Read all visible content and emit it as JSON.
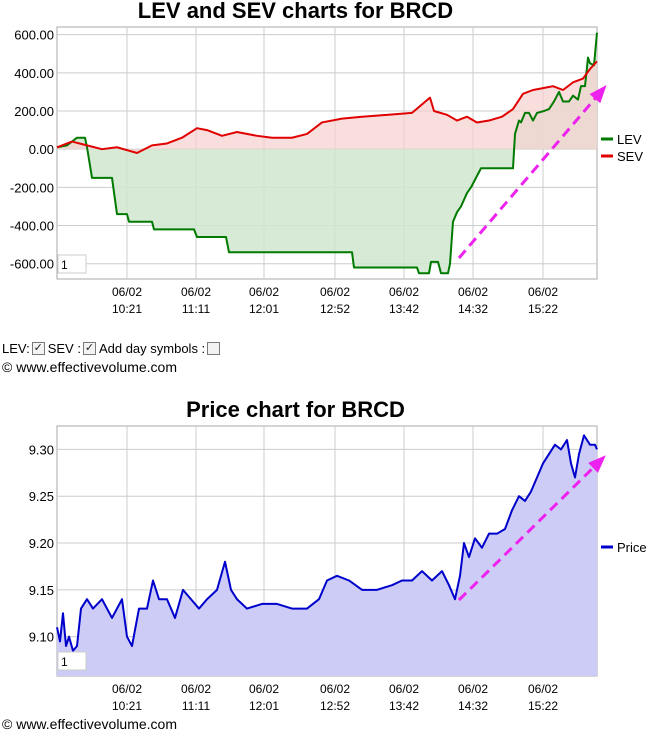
{
  "charts": {
    "lev_sev": {
      "title": "LEV and SEV charts for BRCD",
      "y_tick_labels": [
        "600.00",
        "400.00",
        "200.00",
        "0.00",
        "-200.00",
        "-400.00",
        "-600.00"
      ],
      "x_tick_labels": [
        {
          "date": "06/02",
          "time": "10:21"
        },
        {
          "date": "06/02",
          "time": "11:11"
        },
        {
          "date": "06/02",
          "time": "12:01"
        },
        {
          "date": "06/02",
          "time": "12:52"
        },
        {
          "date": "06/02",
          "time": "13:42"
        },
        {
          "date": "06/02",
          "time": "14:32"
        },
        {
          "date": "06/02",
          "time": "15:22"
        }
      ],
      "legend": [
        {
          "name": "LEV",
          "color": "#007a00"
        },
        {
          "name": "SEV",
          "color": "#e00000"
        }
      ],
      "page_box": "1"
    },
    "price": {
      "title": "Price chart for BRCD",
      "y_tick_labels": [
        "9.30",
        "9.25",
        "9.20",
        "9.15",
        "9.10"
      ],
      "x_tick_labels": [
        {
          "date": "06/02",
          "time": "10:21"
        },
        {
          "date": "06/02",
          "time": "11:11"
        },
        {
          "date": "06/02",
          "time": "12:01"
        },
        {
          "date": "06/02",
          "time": "12:52"
        },
        {
          "date": "06/02",
          "time": "13:42"
        },
        {
          "date": "06/02",
          "time": "14:32"
        },
        {
          "date": "06/02",
          "time": "15:22"
        }
      ],
      "legend": [
        {
          "name": "Price",
          "color": "#0000cc"
        }
      ],
      "page_box": "1"
    }
  },
  "controls": {
    "lev_label": "LEV:",
    "lev_checked": true,
    "sev_label": "SEV :",
    "sev_checked": true,
    "day_symbols_label": "Add day symbols :",
    "day_symbols_checked": false
  },
  "copyright": "© www.effectivevolume.com",
  "colors": {
    "lev": "#007a00",
    "lev_fill": "#cfe6cf",
    "sev": "#e00000",
    "sev_fill": "#f6d0d0",
    "price": "#0000cc",
    "price_fill": "#ccccf6",
    "trend_arrow": "#ee22ee",
    "grid": "#cccccc"
  },
  "chart_data": [
    {
      "type": "area",
      "title": "LEV and SEV charts for BRCD",
      "x_label_times": [
        "10:21",
        "11:11",
        "12:01",
        "12:52",
        "13:42",
        "14:32",
        "15:22"
      ],
      "ylim": [
        -680,
        640
      ],
      "grid": true,
      "legend_position": "right",
      "series": [
        {
          "name": "LEV",
          "values": [
            [
              0,
              10
            ],
            [
              10,
              20
            ],
            [
              20,
              60
            ],
            [
              28,
              60
            ],
            [
              30,
              10
            ],
            [
              35,
              -150
            ],
            [
              55,
              -150
            ],
            [
              60,
              -340
            ],
            [
              70,
              -340
            ],
            [
              72,
              -380
            ],
            [
              95,
              -380
            ],
            [
              97,
              -420
            ],
            [
              137,
              -420
            ],
            [
              140,
              -460
            ],
            [
              169,
              -460
            ],
            [
              172,
              -540
            ],
            [
              295,
              -540
            ],
            [
              297,
              -620
            ],
            [
              360,
              -620
            ],
            [
              362,
              -650
            ],
            [
              372,
              -650
            ],
            [
              374,
              -590
            ],
            [
              381,
              -590
            ],
            [
              384,
              -650
            ],
            [
              391,
              -650
            ],
            [
              393,
              -600
            ],
            [
              396,
              -380
            ],
            [
              400,
              -330
            ],
            [
              404,
              -300
            ],
            [
              410,
              -230
            ],
            [
              414,
              -200
            ],
            [
              418,
              -160
            ],
            [
              424,
              -100
            ],
            [
              456,
              -100
            ],
            [
              458,
              80
            ],
            [
              462,
              150
            ],
            [
              464,
              140
            ],
            [
              468,
              190
            ],
            [
              472,
              190
            ],
            [
              476,
              150
            ],
            [
              480,
              190
            ],
            [
              487,
              200
            ],
            [
              492,
              210
            ],
            [
              497,
              250
            ],
            [
              502,
              300
            ],
            [
              506,
              250
            ],
            [
              512,
              250
            ],
            [
              516,
              280
            ],
            [
              521,
              260
            ],
            [
              524,
              330
            ],
            [
              528,
              330
            ],
            [
              531,
              480
            ],
            [
              533,
              450
            ],
            [
              537,
              440
            ],
            [
              540,
              610
            ]
          ]
        },
        {
          "name": "SEV",
          "values": [
            [
              0,
              10
            ],
            [
              15,
              40
            ],
            [
              30,
              20
            ],
            [
              45,
              0
            ],
            [
              60,
              10
            ],
            [
              80,
              -20
            ],
            [
              95,
              20
            ],
            [
              110,
              30
            ],
            [
              125,
              60
            ],
            [
              140,
              110
            ],
            [
              150,
              100
            ],
            [
              165,
              70
            ],
            [
              180,
              90
            ],
            [
              200,
              70
            ],
            [
              215,
              60
            ],
            [
              235,
              60
            ],
            [
              250,
              80
            ],
            [
              265,
              140
            ],
            [
              285,
              160
            ],
            [
              305,
              170
            ],
            [
              330,
              180
            ],
            [
              355,
              190
            ],
            [
              373,
              270
            ],
            [
              377,
              200
            ],
            [
              390,
              180
            ],
            [
              400,
              150
            ],
            [
              410,
              170
            ],
            [
              420,
              140
            ],
            [
              432,
              150
            ],
            [
              445,
              170
            ],
            [
              456,
              210
            ],
            [
              466,
              290
            ],
            [
              476,
              310
            ],
            [
              486,
              320
            ],
            [
              496,
              330
            ],
            [
              506,
              310
            ],
            [
              516,
              350
            ],
            [
              526,
              370
            ],
            [
              533,
              420
            ],
            [
              540,
              460
            ]
          ]
        }
      ]
    },
    {
      "type": "area",
      "title": "Price chart for BRCD",
      "x_label_times": [
        "10:21",
        "11:11",
        "12:01",
        "12:52",
        "13:42",
        "14:32",
        "15:22"
      ],
      "ylim": [
        9.058,
        9.325
      ],
      "grid": true,
      "legend_position": "right",
      "series": [
        {
          "name": "Price",
          "values": [
            [
              0,
              9.11
            ],
            [
              3,
              9.095
            ],
            [
              6,
              9.125
            ],
            [
              9,
              9.09
            ],
            [
              12,
              9.1
            ],
            [
              16,
              9.085
            ],
            [
              20,
              9.09
            ],
            [
              24,
              9.13
            ],
            [
              30,
              9.14
            ],
            [
              36,
              9.13
            ],
            [
              45,
              9.14
            ],
            [
              55,
              9.12
            ],
            [
              65,
              9.14
            ],
            [
              70,
              9.1
            ],
            [
              75,
              9.09
            ],
            [
              82,
              9.13
            ],
            [
              90,
              9.13
            ],
            [
              96,
              9.16
            ],
            [
              102,
              9.14
            ],
            [
              110,
              9.14
            ],
            [
              118,
              9.12
            ],
            [
              126,
              9.15
            ],
            [
              134,
              9.14
            ],
            [
              142,
              9.13
            ],
            [
              150,
              9.14
            ],
            [
              160,
              9.15
            ],
            [
              168,
              9.18
            ],
            [
              174,
              9.15
            ],
            [
              180,
              9.14
            ],
            [
              190,
              9.13
            ],
            [
              205,
              9.135
            ],
            [
              220,
              9.135
            ],
            [
              235,
              9.13
            ],
            [
              250,
              9.13
            ],
            [
              262,
              9.14
            ],
            [
              270,
              9.16
            ],
            [
              280,
              9.165
            ],
            [
              292,
              9.16
            ],
            [
              305,
              9.15
            ],
            [
              320,
              9.15
            ],
            [
              335,
              9.155
            ],
            [
              345,
              9.16
            ],
            [
              355,
              9.16
            ],
            [
              365,
              9.17
            ],
            [
              375,
              9.16
            ],
            [
              385,
              9.17
            ],
            [
              392,
              9.155
            ],
            [
              398,
              9.14
            ],
            [
              403,
              9.165
            ],
            [
              407,
              9.2
            ],
            [
              412,
              9.185
            ],
            [
              418,
              9.205
            ],
            [
              425,
              9.195
            ],
            [
              432,
              9.21
            ],
            [
              440,
              9.21
            ],
            [
              448,
              9.215
            ],
            [
              455,
              9.235
            ],
            [
              462,
              9.25
            ],
            [
              468,
              9.245
            ],
            [
              474,
              9.255
            ],
            [
              480,
              9.27
            ],
            [
              486,
              9.285
            ],
            [
              492,
              9.295
            ],
            [
              498,
              9.305
            ],
            [
              504,
              9.3
            ],
            [
              510,
              9.31
            ],
            [
              514,
              9.285
            ],
            [
              518,
              9.27
            ],
            [
              522,
              9.295
            ],
            [
              527,
              9.315
            ],
            [
              533,
              9.305
            ],
            [
              538,
              9.305
            ],
            [
              540,
              9.3
            ]
          ]
        }
      ]
    }
  ]
}
